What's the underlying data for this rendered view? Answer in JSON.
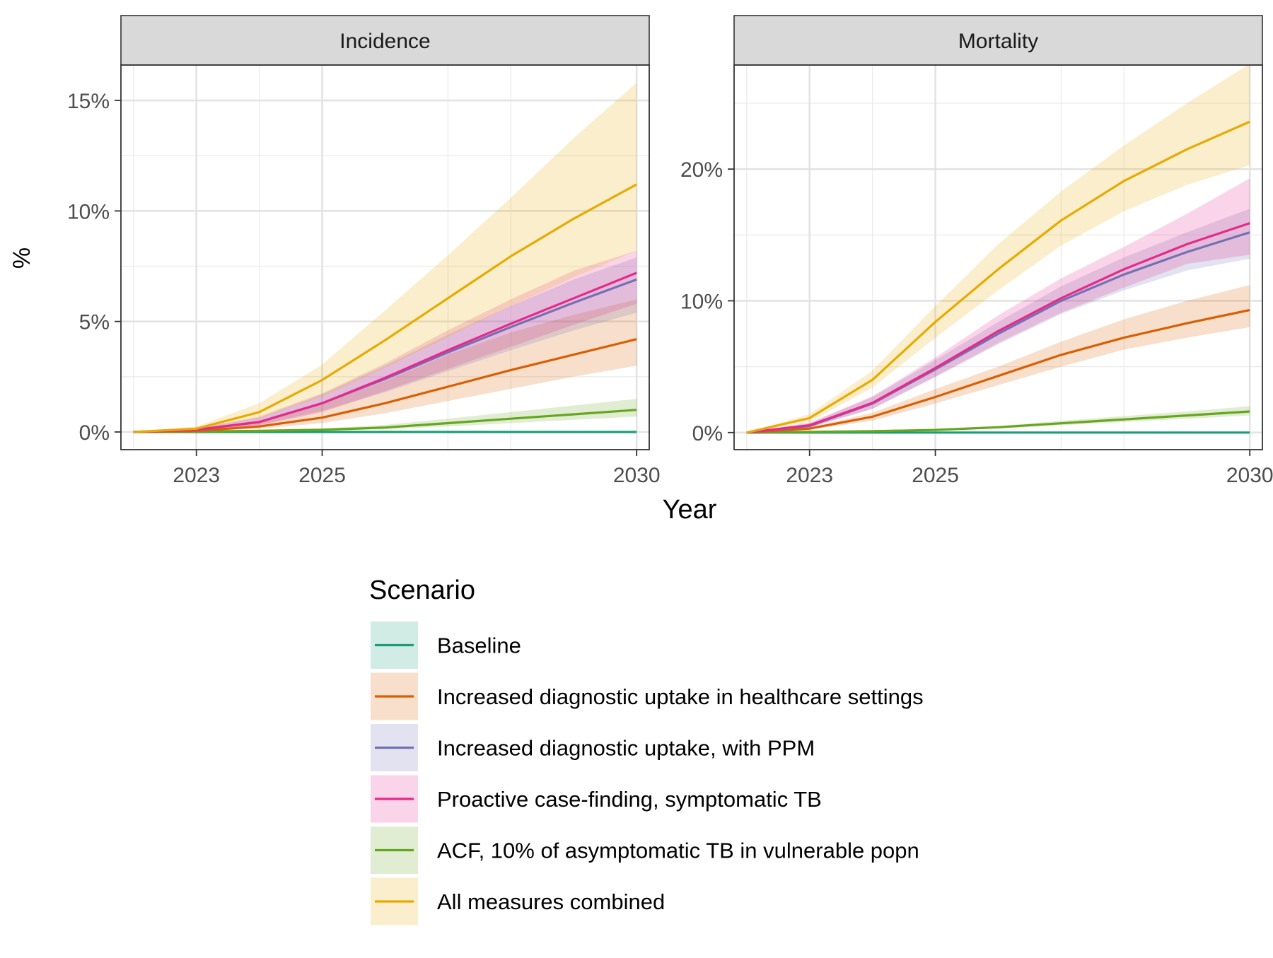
{
  "chart_data": {
    "type": "line",
    "x_label": "Year",
    "y_label": "%",
    "x_range": [
      2022,
      2030
    ],
    "x_ticks": [
      2023,
      2025,
      2030
    ],
    "x_minor_ticks": [
      2022,
      2024,
      2027,
      2028
    ],
    "x_tick_labels": [
      "2023",
      "2025",
      "2030"
    ],
    "grid": true,
    "legend": {
      "title": "Scenario",
      "position": "bottom",
      "entries": [
        {
          "key": "baseline",
          "label": "Baseline",
          "color": "#1B9E77"
        },
        {
          "key": "diag",
          "label": "Increased diagnostic uptake in healthcare settings",
          "color": "#D95F02"
        },
        {
          "key": "ppm",
          "label": "Increased diagnostic uptake, with PPM",
          "color": "#7570B3"
        },
        {
          "key": "proactive",
          "label": "Proactive case-finding, symptomatic TB",
          "color": "#E7298A"
        },
        {
          "key": "acf",
          "label": "ACF, 10% of asymptomatic TB in vulnerable popn",
          "color": "#66A61E"
        },
        {
          "key": "all",
          "label": "All measures combined",
          "color": "#E6AB02"
        }
      ]
    },
    "panels": [
      {
        "strip": "Incidence",
        "ylim": [
          -0.8,
          16.6
        ],
        "y_ticks": [
          0,
          5,
          10,
          15
        ],
        "y_minor_ticks": [
          2.5,
          7.5,
          12.5
        ],
        "y_tick_labels": [
          "0%",
          "5%",
          "10%",
          "15%"
        ],
        "series": [
          {
            "key": "baseline",
            "x": [
              2022,
              2023,
              2024,
              2025,
              2026,
              2027,
              2028,
              2029,
              2030
            ],
            "y": [
              0,
              0,
              0,
              0,
              0,
              0,
              0,
              0,
              0
            ],
            "lower": [
              0,
              0,
              0,
              0,
              0,
              0,
              0,
              0,
              0
            ],
            "upper": [
              0,
              0,
              0,
              0,
              0,
              0,
              0,
              0,
              0
            ]
          },
          {
            "key": "acf",
            "x": [
              2022,
              2023,
              2024,
              2025,
              2026,
              2027,
              2028,
              2029,
              2030
            ],
            "y": [
              0,
              0.02,
              0.05,
              0.1,
              0.2,
              0.4,
              0.6,
              0.8,
              1.0
            ],
            "lower": [
              0,
              0.01,
              0.03,
              0.06,
              0.12,
              0.25,
              0.4,
              0.55,
              0.7
            ],
            "upper": [
              0,
              0.03,
              0.08,
              0.16,
              0.32,
              0.6,
              0.9,
              1.2,
              1.5
            ]
          },
          {
            "key": "diag",
            "x": [
              2022,
              2023,
              2024,
              2025,
              2026,
              2027,
              2028,
              2029,
              2030
            ],
            "y": [
              0,
              0.05,
              0.25,
              0.65,
              1.3,
              2.05,
              2.8,
              3.5,
              4.2
            ],
            "lower": [
              0,
              0.03,
              0.15,
              0.4,
              0.85,
              1.4,
              1.95,
              2.5,
              3.0
            ],
            "upper": [
              0,
              0.1,
              0.5,
              1.3,
              2.3,
              3.5,
              4.5,
              5.3,
              6.0
            ]
          },
          {
            "key": "ppm",
            "x": [
              2022,
              2023,
              2024,
              2025,
              2026,
              2027,
              2028,
              2029,
              2030
            ],
            "y": [
              0,
              0.1,
              0.45,
              1.3,
              2.4,
              3.6,
              4.75,
              5.85,
              6.9
            ],
            "lower": [
              0,
              0.06,
              0.32,
              0.95,
              1.8,
              2.75,
              3.7,
              4.6,
              5.4
            ],
            "upper": [
              0,
              0.15,
              0.65,
              1.7,
              3.0,
              4.4,
              5.7,
              6.9,
              7.9
            ]
          },
          {
            "key": "proactive",
            "x": [
              2022,
              2023,
              2024,
              2025,
              2026,
              2027,
              2028,
              2029,
              2030
            ],
            "y": [
              0,
              0.1,
              0.45,
              1.3,
              2.45,
              3.7,
              4.9,
              6.05,
              7.2
            ],
            "lower": [
              0,
              0.06,
              0.3,
              0.9,
              1.85,
              2.85,
              3.85,
              4.85,
              5.8
            ],
            "upper": [
              0,
              0.16,
              0.7,
              1.75,
              3.1,
              4.6,
              6.0,
              7.3,
              8.2
            ]
          },
          {
            "key": "all",
            "x": [
              2022,
              2023,
              2024,
              2025,
              2026,
              2027,
              2028,
              2029,
              2030
            ],
            "y": [
              0,
              0.15,
              0.9,
              2.35,
              4.15,
              6.05,
              7.95,
              9.65,
              11.2
            ],
            "lower": [
              0,
              0.1,
              0.6,
              1.6,
              2.9,
              4.3,
              5.7,
              7.0,
              8.2
            ],
            "upper": [
              0,
              0.25,
              1.3,
              3.05,
              5.5,
              8.0,
              10.6,
              13.3,
              15.8
            ]
          }
        ]
      },
      {
        "strip": "Mortality",
        "ylim": [
          -1.3,
          27.9
        ],
        "y_ticks": [
          0,
          10,
          20
        ],
        "y_minor_ticks": [
          5,
          15,
          25
        ],
        "y_tick_labels": [
          "0%",
          "10%",
          "20%"
        ],
        "series": [
          {
            "key": "baseline",
            "x": [
              2022,
              2023,
              2024,
              2025,
              2026,
              2027,
              2028,
              2029,
              2030
            ],
            "y": [
              0,
              0,
              0,
              0,
              0,
              0,
              0,
              0,
              0
            ],
            "lower": [
              0,
              0,
              0,
              0,
              0,
              0,
              0,
              0,
              0
            ],
            "upper": [
              0,
              0,
              0,
              0,
              0,
              0,
              0,
              0,
              0
            ]
          },
          {
            "key": "acf",
            "x": [
              2022,
              2023,
              2024,
              2025,
              2026,
              2027,
              2028,
              2029,
              2030
            ],
            "y": [
              0,
              0.05,
              0.1,
              0.2,
              0.4,
              0.7,
              1.0,
              1.3,
              1.6
            ],
            "lower": [
              0,
              0.03,
              0.06,
              0.15,
              0.3,
              0.55,
              0.8,
              1.05,
              1.3
            ],
            "upper": [
              0,
              0.07,
              0.14,
              0.25,
              0.5,
              0.9,
              1.25,
              1.6,
              2.0
            ]
          },
          {
            "key": "diag",
            "x": [
              2022,
              2023,
              2024,
              2025,
              2026,
              2027,
              2028,
              2029,
              2030
            ],
            "y": [
              0,
              0.3,
              1.2,
              2.7,
              4.3,
              5.9,
              7.2,
              8.3,
              9.3
            ],
            "lower": [
              0,
              0.2,
              0.9,
              2.2,
              3.6,
              5.0,
              6.3,
              7.2,
              8.0
            ],
            "upper": [
              0,
              0.4,
              1.5,
              3.3,
              5.0,
              6.9,
              8.6,
              10.0,
              11.2
            ]
          },
          {
            "key": "ppm",
            "x": [
              2022,
              2023,
              2024,
              2025,
              2026,
              2027,
              2028,
              2029,
              2030
            ],
            "y": [
              0,
              0.5,
              2.2,
              4.8,
              7.5,
              10.0,
              12.0,
              13.7,
              15.2
            ],
            "lower": [
              0,
              0.35,
              1.8,
              4.2,
              6.7,
              9.0,
              10.8,
              12.3,
              13.2
            ],
            "upper": [
              0,
              0.7,
              2.7,
              5.5,
              8.4,
              11.1,
              13.3,
              15.2,
              17.0
            ]
          },
          {
            "key": "proactive",
            "x": [
              2022,
              2023,
              2024,
              2025,
              2026,
              2027,
              2028,
              2029,
              2030
            ],
            "y": [
              0,
              0.55,
              2.25,
              4.9,
              7.7,
              10.2,
              12.4,
              14.3,
              15.9
            ],
            "lower": [
              0,
              0.4,
              1.8,
              4.25,
              6.8,
              9.1,
              11.0,
              12.8,
              13.5
            ],
            "upper": [
              0,
              0.75,
              2.75,
              5.7,
              8.9,
              11.7,
              14.1,
              16.6,
              19.3
            ]
          },
          {
            "key": "all",
            "x": [
              2022,
              2023,
              2024,
              2025,
              2026,
              2027,
              2028,
              2029,
              2030
            ],
            "y": [
              0,
              1.1,
              4.0,
              8.4,
              12.4,
              16.1,
              19.1,
              21.5,
              23.6
            ],
            "lower": [
              0,
              0.8,
              3.4,
              7.2,
              10.8,
              14.2,
              16.8,
              18.8,
              20.3
            ],
            "upper": [
              0,
              1.4,
              4.7,
              9.6,
              14.3,
              18.3,
              21.8,
              25.0,
              28.0
            ]
          }
        ]
      }
    ]
  }
}
